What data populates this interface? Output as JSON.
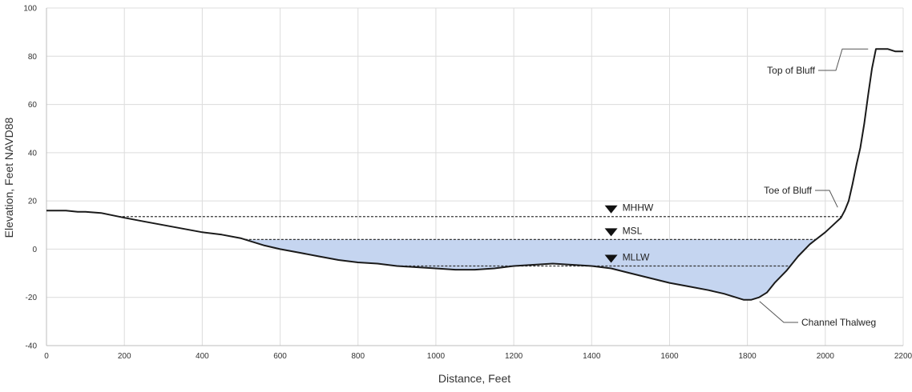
{
  "chart_data": {
    "type": "line",
    "title": "",
    "xlabel": "Distance, Feet",
    "ylabel": "Elevation, Feet NAVD88",
    "xlim": [
      0,
      2200
    ],
    "ylim": [
      -40,
      100
    ],
    "x_ticks": [
      0,
      200,
      400,
      600,
      800,
      1000,
      1200,
      1400,
      1600,
      1800,
      2000,
      2200
    ],
    "y_ticks": [
      -40,
      -20,
      0,
      20,
      40,
      60,
      80,
      100
    ],
    "grid": true,
    "colors": {
      "profile": "#1a1a1a",
      "water_fill": "#c5d5f0",
      "grid": "#dcdcdc",
      "tide_line": "#333333"
    },
    "series": [
      {
        "x": [
          0,
          20,
          50,
          80,
          100,
          140,
          170,
          200,
          250,
          300,
          350,
          400,
          450,
          500,
          520,
          560,
          600,
          650,
          700,
          750,
          800,
          850,
          900,
          950,
          1000,
          1050,
          1100,
          1150,
          1200,
          1250,
          1300,
          1350,
          1400,
          1450,
          1500,
          1550,
          1600,
          1650,
          1700,
          1740,
          1770,
          1790,
          1810,
          1830,
          1850,
          1870,
          1900,
          1930,
          1960,
          2000,
          2020,
          2040,
          2050,
          2060,
          2070,
          2080,
          2090,
          2100,
          2110,
          2120,
          2130,
          2140,
          2160,
          2180,
          2200
        ],
        "y": [
          16,
          16,
          16,
          15.5,
          15.5,
          15,
          14,
          13,
          11.5,
          10,
          8.5,
          7,
          6,
          4.5,
          3.5,
          1.5,
          0,
          -1.5,
          -3,
          -4.5,
          -5.5,
          -6,
          -7,
          -7.5,
          -8,
          -8.5,
          -8.5,
          -8,
          -7,
          -6.5,
          -6,
          -6.5,
          -7,
          -8,
          -10,
          -12,
          -14,
          -15.5,
          -17,
          -18.5,
          -20,
          -21,
          -21,
          -20,
          -18,
          -14,
          -9,
          -3,
          2,
          7,
          10,
          13,
          16,
          20,
          27,
          35,
          42,
          52,
          64,
          75,
          83,
          83,
          83,
          82,
          82
        ]
      }
    ],
    "reference_lines": [
      {
        "name": "MHHW",
        "y": 13.5
      },
      {
        "name": "MSL",
        "y": 4
      },
      {
        "name": "MLLW",
        "y": -7
      }
    ],
    "annotations": [
      {
        "text": "Top of Bluff",
        "x": 2110,
        "y": 83
      },
      {
        "text": "Toe of Bluff",
        "x": 2040,
        "y": 16
      },
      {
        "text": "Channel Thalweg",
        "x": 1790,
        "y": -21
      }
    ]
  }
}
